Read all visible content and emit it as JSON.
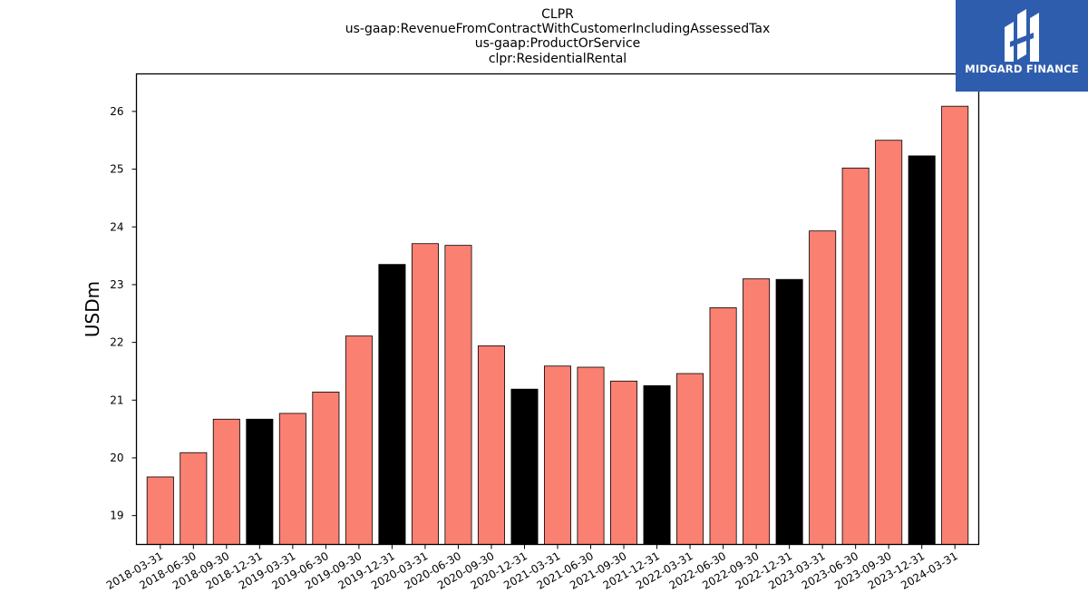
{
  "chart_data": {
    "type": "bar",
    "title_lines": [
      "CLPR",
      "us-gaap:RevenueFromContractWithCustomerIncludingAssessedTax",
      "us-gaap:ProductOrService",
      "clpr:ResidentialRental"
    ],
    "xlabel": "",
    "ylabel": "USDm",
    "ylim": [
      18.5,
      26.65
    ],
    "yticks": [
      19,
      20,
      21,
      22,
      23,
      24,
      25,
      26
    ],
    "categories": [
      "2018-03-31",
      "2018-06-30",
      "2018-09-30",
      "2018-12-31",
      "2019-03-31",
      "2019-06-30",
      "2019-09-30",
      "2019-12-31",
      "2020-03-31",
      "2020-06-30",
      "2020-09-30",
      "2020-12-31",
      "2021-03-31",
      "2021-06-30",
      "2021-09-30",
      "2021-12-31",
      "2022-03-31",
      "2022-06-30",
      "2022-09-30",
      "2022-12-31",
      "2023-03-31",
      "2023-06-30",
      "2023-09-30",
      "2023-12-31",
      "2024-03-31"
    ],
    "values": [
      19.67,
      20.09,
      20.67,
      20.67,
      20.77,
      21.14,
      22.11,
      23.35,
      23.71,
      23.68,
      21.94,
      21.19,
      21.59,
      21.57,
      21.33,
      21.25,
      21.46,
      22.6,
      23.1,
      23.09,
      23.93,
      25.02,
      25.5,
      25.23,
      26.09
    ],
    "bar_colors": [
      "#fa8072",
      "#fa8072",
      "#fa8072",
      "#000000",
      "#fa8072",
      "#fa8072",
      "#fa8072",
      "#000000",
      "#fa8072",
      "#fa8072",
      "#fa8072",
      "#000000",
      "#fa8072",
      "#fa8072",
      "#fa8072",
      "#000000",
      "#fa8072",
      "#fa8072",
      "#fa8072",
      "#000000",
      "#fa8072",
      "#fa8072",
      "#fa8072",
      "#000000",
      "#fa8072"
    ],
    "grid": false,
    "legend": "none"
  },
  "logo": {
    "text": "MIDGARD FINANCE",
    "background": "#2f5dae"
  }
}
